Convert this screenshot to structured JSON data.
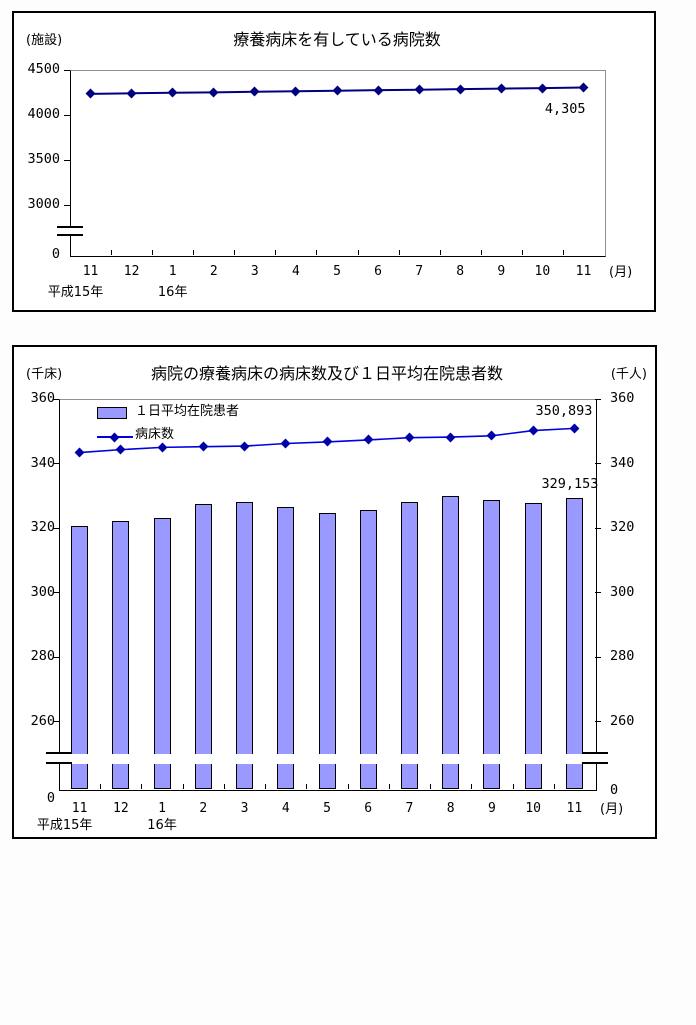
{
  "chart_data": [
    {
      "type": "line",
      "title": "療養病床を有している病院数",
      "y_axis": {
        "unit": "(施設)",
        "tick_values": [
          4500,
          4000,
          3500,
          3000
        ],
        "zero_label": "0",
        "range_shown": [
          3000,
          4500
        ],
        "axis_break": true
      },
      "x_axis": {
        "unit": "(月)",
        "categories": [
          "11",
          "12",
          "1",
          "2",
          "3",
          "4",
          "5",
          "6",
          "7",
          "8",
          "9",
          "10",
          "11"
        ],
        "era_labels": [
          {
            "label": "平成15年",
            "at_index": 0
          },
          {
            "label": "16年",
            "at_index": 2
          }
        ]
      },
      "grid": false,
      "legend": null,
      "series": [
        {
          "name": "病院数",
          "type": "line",
          "color": "#000080",
          "marker_color": "#000080",
          "values": [
            4235,
            4241,
            4247,
            4252,
            4258,
            4264,
            4270,
            4276,
            4281,
            4287,
            4293,
            4299,
            4305
          ]
        }
      ],
      "annotations": [
        {
          "text": "4,305",
          "series_index": 0,
          "point_index": 12
        }
      ]
    },
    {
      "type": "bar+line",
      "title": "病院の療養病床の病床数及び１日平均在院患者数",
      "y_axis": {
        "unit": "(千床)",
        "tick_values": [
          360,
          340,
          320,
          300,
          280,
          260
        ],
        "zero_label": "0",
        "range_shown": [
          260,
          360
        ],
        "axis_break": true
      },
      "y_axis_right": {
        "unit": "(千人)",
        "tick_values": [
          360,
          340,
          320,
          300,
          280,
          260
        ],
        "zero_label": "0"
      },
      "x_axis": {
        "unit": "(月)",
        "categories": [
          "11",
          "12",
          "1",
          "2",
          "3",
          "4",
          "5",
          "6",
          "7",
          "8",
          "9",
          "10",
          "11"
        ],
        "era_labels": [
          {
            "label": "平成15年",
            "at_index": 0
          },
          {
            "label": "16年",
            "at_index": 2
          }
        ]
      },
      "grid": false,
      "legend_position": "top-left",
      "series": [
        {
          "name": "１日平均在院患者",
          "type": "bar",
          "color": "#9999FF",
          "values": [
            320.5,
            322.3,
            323.0,
            327.3,
            328.0,
            326.5,
            324.6,
            325.5,
            328.0,
            329.9,
            328.8,
            327.8,
            329.153
          ]
        },
        {
          "name": "病床数",
          "type": "line",
          "color": "#0000E0",
          "marker_color": "#0000A8",
          "values": [
            343.4,
            344.3,
            345.0,
            345.2,
            345.4,
            346.2,
            346.7,
            347.3,
            348.0,
            348.2,
            348.6,
            350.2,
            350.893
          ]
        }
      ],
      "annotations": [
        {
          "text": "350,893",
          "series_index": 1,
          "point_index": 12
        },
        {
          "text": "329,153",
          "series_index": 0,
          "point_index": 12
        }
      ]
    }
  ]
}
